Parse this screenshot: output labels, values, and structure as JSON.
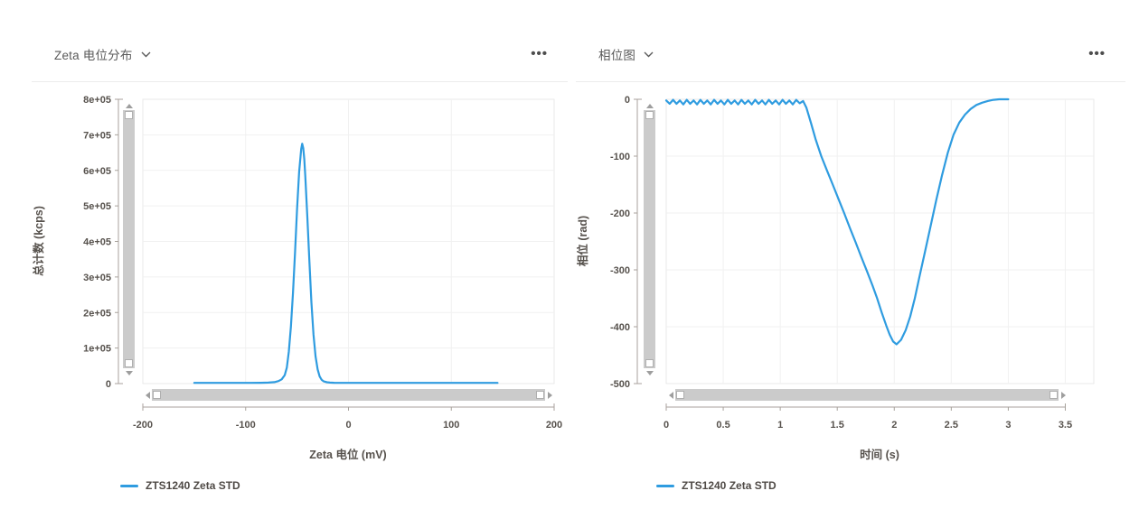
{
  "colors": {
    "series_blue": "#2f9ce0",
    "text": "#57524d",
    "title_text": "#5a5a5a",
    "axis_line": "#a8a29c",
    "grid_line": "#f1f1f1",
    "plot_border": "#e9e9e9",
    "scrollbar_track": "#cbcbcb",
    "scrollbar_handle": "#ffffff",
    "scrollbar_arrow": "#9e9e9e"
  },
  "icons": {
    "more_options": "•••",
    "dropdown_chevron": "∨",
    "scroll_up": "▲",
    "scroll_down": "▼",
    "scroll_left": "◄",
    "scroll_right": "►"
  },
  "panels": [
    {
      "title": "Zeta 电位分布",
      "legend": {
        "label": "ZTS1240 Zeta STD",
        "color": "#2f9ce0"
      }
    },
    {
      "title": "相位图",
      "legend": {
        "label": "ZTS1240 Zeta STD",
        "color": "#2f9ce0"
      }
    }
  ],
  "chart_data": [
    {
      "type": "line",
      "title": "Zeta 电位分布",
      "xlabel": "Zeta 电位 (mV)",
      "ylabel": "总计数 (kcps)",
      "xlim": [
        -200,
        200
      ],
      "ylim": [
        0,
        800000
      ],
      "grid": true,
      "legend_position": "bottom-left",
      "xticks": {
        "values": [
          -200,
          -100,
          0,
          100,
          200
        ],
        "labels": [
          "-200",
          "-100",
          "0",
          "100",
          "200"
        ]
      },
      "yticks": {
        "values": [
          0,
          100000,
          200000,
          300000,
          400000,
          500000,
          600000,
          700000,
          800000
        ],
        "labels": [
          "0",
          "1e+05",
          "2e+05",
          "3e+05",
          "4e+05",
          "5e+05",
          "6e+05",
          "7e+05",
          "8e+05"
        ]
      },
      "series": [
        {
          "name": "ZTS1240 Zeta STD",
          "color": "#2f9ce0",
          "points": [
            [
              -150,
              2000
            ],
            [
              -130,
              2000
            ],
            [
              -110,
              2000
            ],
            [
              -95,
              2000
            ],
            [
              -85,
              2200
            ],
            [
              -78,
              2800
            ],
            [
              -72,
              4000
            ],
            [
              -68,
              7000
            ],
            [
              -65,
              12000
            ],
            [
              -62,
              24000
            ],
            [
              -60,
              45000
            ],
            [
              -58,
              90000
            ],
            [
              -56,
              160000
            ],
            [
              -54,
              255000
            ],
            [
              -52,
              370000
            ],
            [
              -50,
              490000
            ],
            [
              -48,
              595000
            ],
            [
              -46,
              660000
            ],
            [
              -45,
              675000
            ],
            [
              -44,
              662000
            ],
            [
              -43,
              632000
            ],
            [
              -42,
              585000
            ],
            [
              -40,
              468000
            ],
            [
              -38,
              342000
            ],
            [
              -36,
              228000
            ],
            [
              -34,
              138000
            ],
            [
              -32,
              76000
            ],
            [
              -30,
              40000
            ],
            [
              -28,
              20000
            ],
            [
              -26,
              10500
            ],
            [
              -24,
              6000
            ],
            [
              -21,
              3800
            ],
            [
              -18,
              2800
            ],
            [
              -14,
              2300
            ],
            [
              -8,
              2000
            ],
            [
              0,
              2000
            ],
            [
              15,
              2000
            ],
            [
              35,
              2000
            ],
            [
              60,
              2000
            ],
            [
              85,
              2000
            ],
            [
              110,
              2000
            ],
            [
              130,
              2000
            ],
            [
              145,
              2000
            ]
          ]
        }
      ]
    },
    {
      "type": "line",
      "title": "相位图",
      "xlabel": "时间 (s)",
      "ylabel": "相位 (rad)",
      "xlim": [
        0,
        3.75
      ],
      "ylim": [
        -500,
        0
      ],
      "grid": true,
      "legend_position": "bottom-left",
      "xticks": {
        "values": [
          0,
          0.5,
          1,
          1.5,
          2,
          2.5,
          3,
          3.5
        ],
        "labels": [
          "0",
          "0.5",
          "1",
          "1.5",
          "2",
          "2.5",
          "3",
          "3.5"
        ]
      },
      "yticks": {
        "values": [
          0,
          -100,
          -200,
          -300,
          -400,
          -500
        ],
        "labels": [
          "0",
          "-100",
          "-200",
          "-300",
          "-400",
          "-500"
        ]
      },
      "series": [
        {
          "name": "ZTS1240 Zeta STD",
          "color": "#2f9ce0",
          "points": [
            [
              0,
              -2
            ],
            [
              0.03,
              -8
            ],
            [
              0.06,
              -1
            ],
            [
              0.09,
              -8
            ],
            [
              0.12,
              -2
            ],
            [
              0.15,
              -9
            ],
            [
              0.18,
              -1
            ],
            [
              0.21,
              -8
            ],
            [
              0.24,
              -2
            ],
            [
              0.27,
              -9
            ],
            [
              0.3,
              -1
            ],
            [
              0.33,
              -8
            ],
            [
              0.36,
              -2
            ],
            [
              0.39,
              -9
            ],
            [
              0.42,
              -1
            ],
            [
              0.45,
              -8
            ],
            [
              0.48,
              -2
            ],
            [
              0.51,
              -9
            ],
            [
              0.54,
              -1
            ],
            [
              0.57,
              -8
            ],
            [
              0.6,
              -2
            ],
            [
              0.63,
              -9
            ],
            [
              0.66,
              -1
            ],
            [
              0.69,
              -8
            ],
            [
              0.72,
              -2
            ],
            [
              0.75,
              -9
            ],
            [
              0.78,
              -1
            ],
            [
              0.81,
              -8
            ],
            [
              0.84,
              -2
            ],
            [
              0.87,
              -9
            ],
            [
              0.9,
              -1
            ],
            [
              0.93,
              -8
            ],
            [
              0.96,
              -2
            ],
            [
              0.99,
              -9
            ],
            [
              1.02,
              -1
            ],
            [
              1.05,
              -8
            ],
            [
              1.08,
              -2
            ],
            [
              1.11,
              -9
            ],
            [
              1.14,
              -1
            ],
            [
              1.17,
              -7
            ],
            [
              1.2,
              -3
            ],
            [
              1.23,
              -15
            ],
            [
              1.27,
              -42
            ],
            [
              1.31,
              -70
            ],
            [
              1.36,
              -100
            ],
            [
              1.41,
              -125
            ],
            [
              1.46,
              -150
            ],
            [
              1.51,
              -175
            ],
            [
              1.56,
              -200
            ],
            [
              1.61,
              -226
            ],
            [
              1.66,
              -251
            ],
            [
              1.71,
              -277
            ],
            [
              1.76,
              -302
            ],
            [
              1.81,
              -328
            ],
            [
              1.85,
              -350
            ],
            [
              1.89,
              -375
            ],
            [
              1.93,
              -398
            ],
            [
              1.96,
              -414
            ],
            [
              1.99,
              -426
            ],
            [
              2.02,
              -431
            ],
            [
              2.06,
              -423
            ],
            [
              2.1,
              -406
            ],
            [
              2.14,
              -382
            ],
            [
              2.18,
              -350
            ],
            [
              2.22,
              -313
            ],
            [
              2.27,
              -268
            ],
            [
              2.32,
              -222
            ],
            [
              2.37,
              -176
            ],
            [
              2.42,
              -133
            ],
            [
              2.47,
              -94
            ],
            [
              2.52,
              -62
            ],
            [
              2.57,
              -41
            ],
            [
              2.62,
              -27
            ],
            [
              2.67,
              -17
            ],
            [
              2.72,
              -10
            ],
            [
              2.77,
              -6
            ],
            [
              2.82,
              -3
            ],
            [
              2.87,
              -1
            ],
            [
              2.92,
              0
            ],
            [
              3.0,
              0
            ]
          ]
        }
      ]
    }
  ]
}
